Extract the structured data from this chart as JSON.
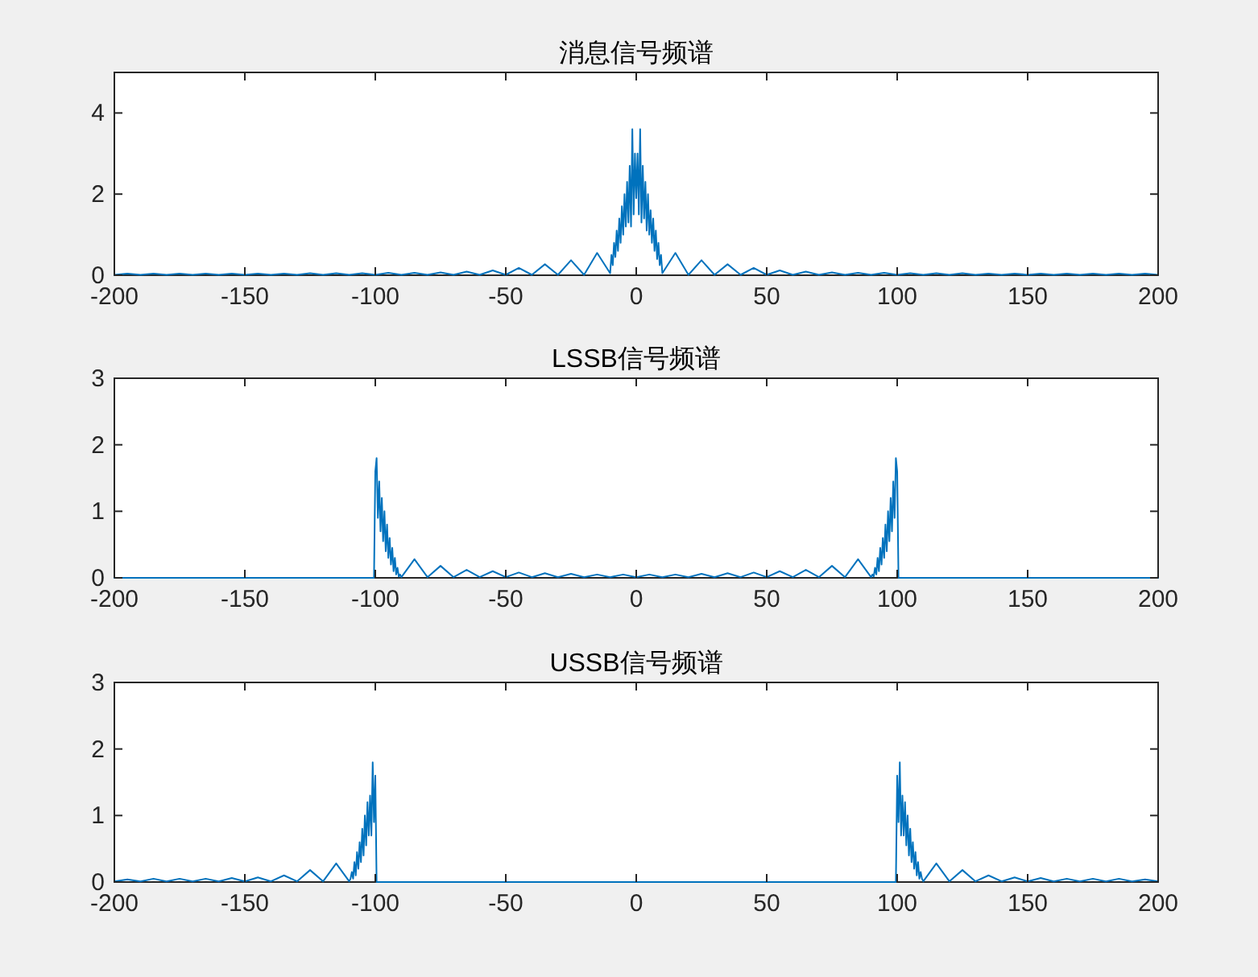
{
  "chart_data": [
    {
      "type": "line",
      "title": "消息信号频谱",
      "color": "#0072bd",
      "xlim": [
        -200,
        200
      ],
      "xticks": [
        -200,
        -150,
        -100,
        -50,
        0,
        50,
        100,
        150,
        200
      ],
      "ylim": [
        0,
        5
      ],
      "yticks": [
        0,
        2,
        4
      ],
      "x": [
        -200,
        -195,
        -190,
        -185,
        -180,
        -175,
        -170,
        -165,
        -160,
        -155,
        -150,
        -145,
        -140,
        -135,
        -130,
        -125,
        -120,
        -115,
        -110,
        -105,
        -100,
        -95,
        -90,
        -85,
        -80,
        -75,
        -70,
        -65,
        -60,
        -55,
        -50,
        -45,
        -40,
        -35,
        -30,
        -25,
        -20,
        -15,
        -10,
        -9.5,
        -9,
        -8.5,
        -8,
        -7.5,
        -7,
        -6.5,
        -6,
        -5.5,
        -5,
        -4.5,
        -4,
        -3.5,
        -3,
        -2.5,
        -2,
        -1.5,
        -1,
        -0.5,
        0,
        0.5,
        1,
        1.5,
        2,
        2.5,
        3,
        3.5,
        4,
        4.5,
        5,
        5.5,
        6,
        6.5,
        7,
        7.5,
        8,
        8.5,
        9,
        9.5,
        10,
        15,
        20,
        25,
        30,
        35,
        40,
        45,
        50,
        55,
        60,
        65,
        70,
        75,
        80,
        85,
        90,
        95,
        100,
        105,
        110,
        115,
        120,
        125,
        130,
        135,
        140,
        145,
        150,
        155,
        160,
        165,
        170,
        175,
        180,
        185,
        190,
        195,
        200
      ],
      "values": [
        0.01,
        0.04,
        0.01,
        0.04,
        0.01,
        0.04,
        0.01,
        0.04,
        0.01,
        0.04,
        0.01,
        0.04,
        0.01,
        0.04,
        0.01,
        0.05,
        0.01,
        0.05,
        0.01,
        0.05,
        0.01,
        0.06,
        0.01,
        0.06,
        0.01,
        0.07,
        0.01,
        0.09,
        0.01,
        0.12,
        0.01,
        0.18,
        0.01,
        0.27,
        0.01,
        0.37,
        0.01,
        0.55,
        0.05,
        0.5,
        0.25,
        0.8,
        0.45,
        1.1,
        0.6,
        1.4,
        0.8,
        1.7,
        1.0,
        2.0,
        1.2,
        2.3,
        1.3,
        2.7,
        1.2,
        3.6,
        1.5,
        3.0,
        1.9,
        3.0,
        1.5,
        3.6,
        1.3,
        2.7,
        1.4,
        2.3,
        1.1,
        2.0,
        1.0,
        1.6,
        0.8,
        1.4,
        0.6,
        1.1,
        0.4,
        0.8,
        0.25,
        0.5,
        0.05,
        0.55,
        0.01,
        0.37,
        0.01,
        0.27,
        0.01,
        0.18,
        0.01,
        0.12,
        0.01,
        0.09,
        0.01,
        0.07,
        0.01,
        0.06,
        0.01,
        0.06,
        0.01,
        0.05,
        0.01,
        0.05,
        0.01,
        0.05,
        0.01,
        0.04,
        0.01,
        0.04,
        0.01,
        0.04,
        0.01,
        0.04,
        0.01,
        0.04,
        0.01,
        0.04,
        0.01,
        0.04,
        0.01
      ]
    },
    {
      "type": "line",
      "title": "LSSB信号频谱",
      "color": "#0072bd",
      "xlim": [
        -200,
        200
      ],
      "xticks": [
        -200,
        -150,
        -100,
        -50,
        0,
        50,
        100,
        150,
        200
      ],
      "ylim": [
        0,
        3
      ],
      "yticks": [
        0,
        1,
        2,
        3
      ],
      "x": [
        -200,
        -100.5,
        -100,
        -99.5,
        -99,
        -98.5,
        -98,
        -97.5,
        -97,
        -96.5,
        -96,
        -95.5,
        -95,
        -94.5,
        -94,
        -93.5,
        -93,
        -92.5,
        -92,
        -91.5,
        -91,
        -90.5,
        -90,
        -85,
        -80,
        -75,
        -70,
        -65,
        -60,
        -55,
        -50,
        -45,
        -40,
        -35,
        -30,
        -25,
        -20,
        -15,
        -10,
        -5,
        0,
        5,
        10,
        15,
        20,
        25,
        30,
        35,
        40,
        45,
        50,
        55,
        60,
        65,
        70,
        75,
        80,
        85,
        90,
        90.5,
        91,
        91.5,
        92,
        92.5,
        93,
        93.5,
        94,
        94.5,
        95,
        95.5,
        96,
        96.5,
        97,
        97.5,
        98,
        98.5,
        99,
        99.5,
        100,
        100.5,
        200
      ],
      "values": [
        0,
        0,
        1.6,
        1.8,
        0.9,
        1.45,
        0.7,
        1.2,
        0.55,
        1.0,
        0.4,
        0.8,
        0.3,
        0.6,
        0.2,
        0.45,
        0.1,
        0.3,
        0.05,
        0.15,
        0.02,
        0.05,
        0.01,
        0.28,
        0.01,
        0.18,
        0.01,
        0.12,
        0.01,
        0.1,
        0.01,
        0.08,
        0.01,
        0.07,
        0.01,
        0.06,
        0.01,
        0.05,
        0.01,
        0.05,
        0.01,
        0.05,
        0.01,
        0.05,
        0.01,
        0.06,
        0.01,
        0.07,
        0.01,
        0.08,
        0.01,
        0.1,
        0.01,
        0.12,
        0.01,
        0.18,
        0.01,
        0.28,
        0.01,
        0.05,
        0.02,
        0.15,
        0.05,
        0.3,
        0.1,
        0.45,
        0.2,
        0.6,
        0.3,
        0.8,
        0.4,
        1.0,
        0.55,
        1.2,
        0.7,
        1.45,
        0.9,
        1.8,
        1.6,
        0,
        0
      ]
    },
    {
      "type": "line",
      "title": "USSB信号频谱",
      "color": "#0072bd",
      "xlim": [
        -200,
        200
      ],
      "xticks": [
        -200,
        -150,
        -100,
        -50,
        0,
        50,
        100,
        150,
        200
      ],
      "ylim": [
        0,
        3
      ],
      "yticks": [
        0,
        1,
        2,
        3
      ],
      "x": [
        -200,
        -195,
        -190,
        -185,
        -180,
        -175,
        -170,
        -165,
        -160,
        -155,
        -150,
        -145,
        -140,
        -135,
        -130,
        -125,
        -120,
        -115,
        -110,
        -109.5,
        -109,
        -108.5,
        -108,
        -107.5,
        -107,
        -106.5,
        -106,
        -105.5,
        -105,
        -104.5,
        -104,
        -103.5,
        -103,
        -102.5,
        -102,
        -101.5,
        -101,
        -100.5,
        -100,
        -99.5,
        99.5,
        100,
        100.5,
        101,
        101.5,
        102,
        102.5,
        103,
        103.5,
        104,
        104.5,
        105,
        105.5,
        106,
        106.5,
        107,
        107.5,
        108,
        108.5,
        109,
        109.5,
        110,
        115,
        120,
        125,
        130,
        135,
        140,
        145,
        150,
        155,
        160,
        165,
        170,
        175,
        180,
        185,
        190,
        195,
        200
      ],
      "values": [
        0.01,
        0.04,
        0.01,
        0.05,
        0.01,
        0.05,
        0.01,
        0.05,
        0.01,
        0.06,
        0.01,
        0.07,
        0.01,
        0.1,
        0.01,
        0.18,
        0.01,
        0.28,
        0.01,
        0.05,
        0.15,
        0.05,
        0.3,
        0.1,
        0.45,
        0.2,
        0.6,
        0.3,
        0.8,
        0.4,
        1.0,
        0.55,
        1.2,
        0.7,
        1.3,
        0.7,
        1.8,
        0.9,
        1.6,
        0,
        0,
        1.6,
        0.9,
        1.8,
        0.7,
        1.3,
        0.7,
        1.2,
        0.55,
        1.0,
        0.4,
        0.8,
        0.3,
        0.6,
        0.2,
        0.45,
        0.1,
        0.3,
        0.05,
        0.15,
        0.05,
        0.01,
        0.28,
        0.01,
        0.18,
        0.01,
        0.1,
        0.01,
        0.07,
        0.01,
        0.06,
        0.01,
        0.05,
        0.01,
        0.05,
        0.01,
        0.05,
        0.01,
        0.04,
        0.01
      ]
    }
  ]
}
